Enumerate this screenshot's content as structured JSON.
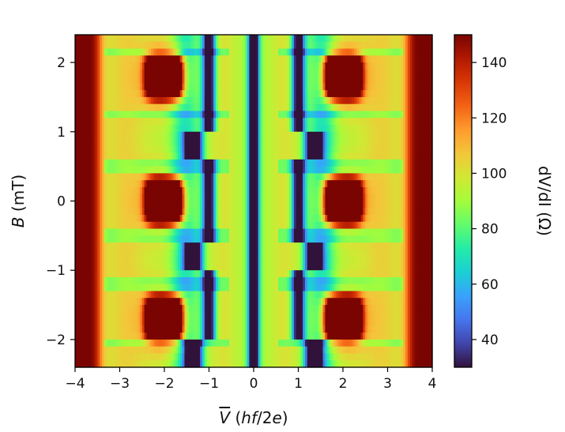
{
  "chart_data": {
    "type": "heatmap",
    "title": "",
    "x_axis": {
      "label_parts": [
        {
          "text": "V",
          "style": "italic",
          "overline": true
        },
        {
          "text": " (",
          "style": "normal"
        },
        {
          "text": "hf",
          "style": "italic"
        },
        {
          "text": "/2",
          "style": "normal"
        },
        {
          "text": "e",
          "style": "italic"
        },
        {
          "text": ")",
          "style": "normal"
        }
      ],
      "range": [
        -4,
        4
      ],
      "ticks": [
        -4,
        -3,
        -2,
        -1,
        0,
        1,
        2,
        3,
        4
      ],
      "tick_labels": [
        "−4",
        "−3",
        "−2",
        "−1",
        "0",
        "1",
        "2",
        "3",
        "4"
      ]
    },
    "y_axis": {
      "label_parts": [
        {
          "text": "B",
          "style": "italic"
        },
        {
          "text": " (mT)",
          "style": "normal"
        }
      ],
      "range": [
        -2.4,
        2.4
      ],
      "ticks": [
        -2,
        -1,
        0,
        1,
        2
      ],
      "tick_labels": [
        "−2",
        "−1",
        "0",
        "1",
        "2"
      ]
    },
    "colorbar": {
      "label": "dV/dI (Ω)",
      "range": [
        30,
        150
      ],
      "ticks": [
        40,
        60,
        80,
        100,
        120,
        140
      ],
      "tick_labels": [
        "40",
        "60",
        "80",
        "100",
        "120",
        "140"
      ],
      "colormap": "turbo",
      "colors": [
        "#30123b",
        "#4145ab",
        "#4675ed",
        "#39a2fc",
        "#1bcfd4",
        "#24eca6",
        "#61fc6c",
        "#a4fc3b",
        "#d1e834",
        "#f3c63a",
        "#fe9b2d",
        "#f36315",
        "#d93806",
        "#b11901",
        "#7a0402"
      ]
    },
    "grid": false,
    "legend": "none",
    "features": {
      "central_minimum_V": 0,
      "symmetric_minima_V": [
        -1.0,
        1.0
      ],
      "minima_shifted_V_in_lobes": [
        -1.4,
        1.4
      ],
      "minima_lobe_B_ranges_mT": [
        [
          -2.35,
          -2.05
        ],
        [
          -0.95,
          -0.6
        ],
        [
          0.6,
          0.95
        ]
      ],
      "hot_spots": [
        {
          "V": -2.0,
          "B": 1.8
        },
        {
          "V": 2.0,
          "B": 1.8
        },
        {
          "V": -2.0,
          "B": 0.0
        },
        {
          "V": 2.0,
          "B": 0.0
        },
        {
          "V": -2.0,
          "B": -1.7
        },
        {
          "V": 2.0,
          "B": -1.7
        }
      ],
      "edge_high_resistance_V": [
        [
          -4,
          -3.5
        ],
        [
          3.5,
          4
        ]
      ],
      "approx_dVdI_ohm": {
        "min": 30,
        "background": 90,
        "max": 150
      }
    }
  }
}
